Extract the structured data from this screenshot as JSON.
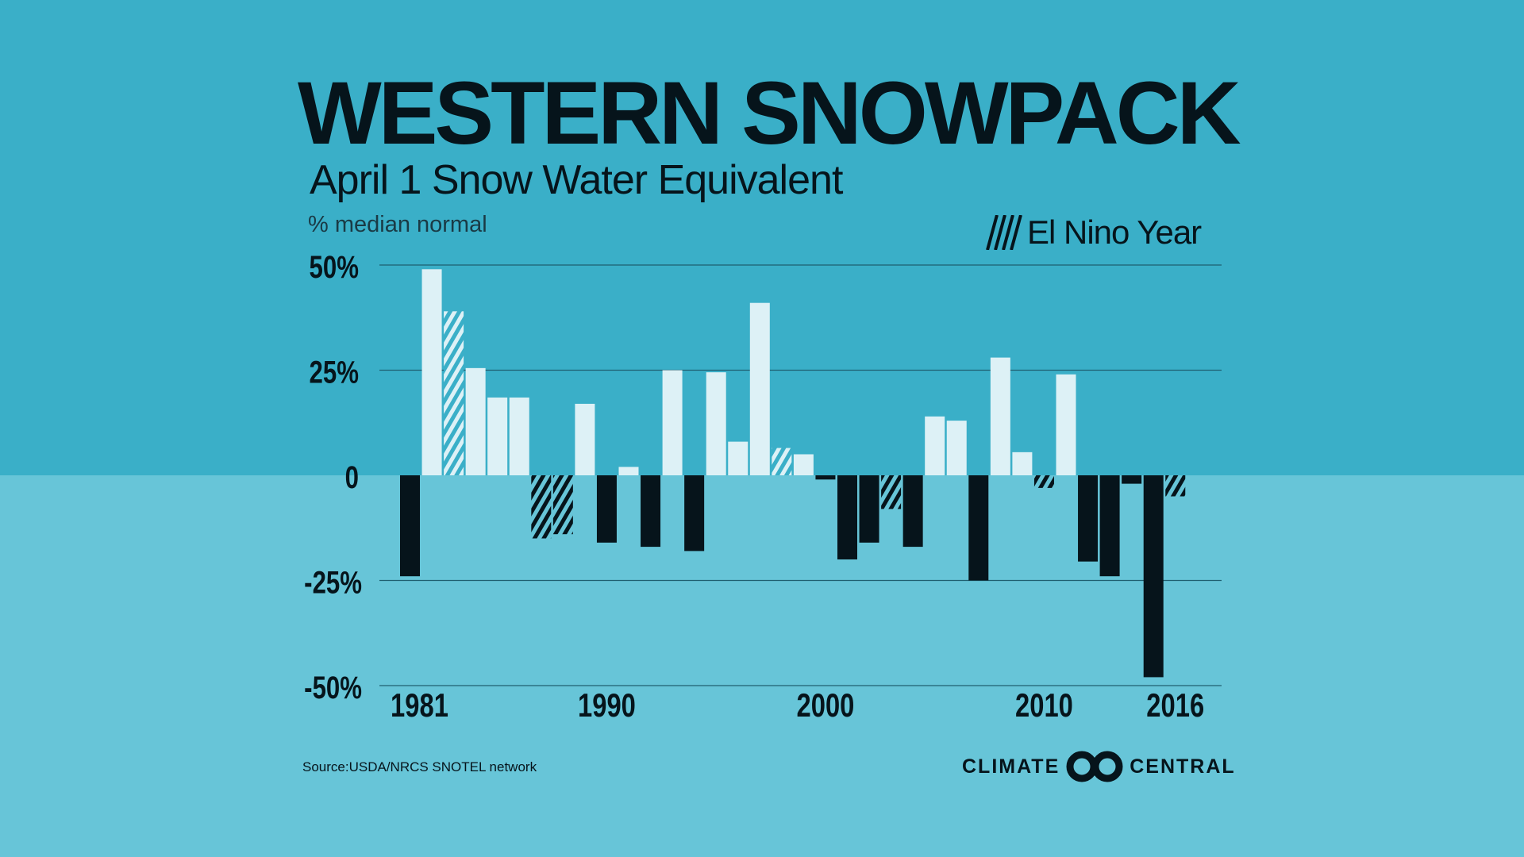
{
  "title": "WESTERN SNOWPACK",
  "subtitle": "April 1 Snow Water Equivalent",
  "unit_label": "% median normal",
  "legend_label": "El Nino Year",
  "source": "Source:USDA/NRCS SNOTEL network",
  "logo": {
    "left": "CLIMATE",
    "right": "CENTRAL"
  },
  "colors": {
    "bg_top": "#3aafc8",
    "bg_bottom": "#67c5d8",
    "positive": "#ddf1f6",
    "negative": "#06141b"
  },
  "chart_data": {
    "type": "bar",
    "title": "WESTERN SNOWPACK",
    "ylabel": "% median normal",
    "ylim": [
      -50,
      50
    ],
    "yticks": [
      50,
      25,
      0,
      -25,
      -50
    ],
    "ytick_labels": [
      "50%",
      "25%",
      "0",
      "-25%",
      "-50%"
    ],
    "xtick_labels": [
      "1981",
      "1990",
      "2000",
      "2010",
      "2016"
    ],
    "years": [
      1981,
      1982,
      1983,
      1984,
      1985,
      1986,
      1987,
      1988,
      1989,
      1990,
      1991,
      1992,
      1993,
      1994,
      1995,
      1996,
      1997,
      1998,
      1999,
      2000,
      2001,
      2002,
      2003,
      2004,
      2005,
      2006,
      2007,
      2008,
      2009,
      2010,
      2011,
      2012,
      2013,
      2014,
      2015,
      2016
    ],
    "values": [
      -24,
      49,
      39,
      25.5,
      18.5,
      18.5,
      -15,
      -14,
      17,
      -16,
      2,
      -17,
      25,
      -18,
      24.5,
      8,
      41,
      6.5,
      5,
      -1,
      -20,
      -16,
      -8,
      -17,
      14,
      13,
      -25,
      28,
      5.5,
      -3,
      24,
      -20.5,
      -24,
      -2,
      -48,
      -5
    ],
    "el_nino_years": [
      1983,
      1987,
      1988,
      1998,
      2003,
      2010,
      2016
    ],
    "legend": "El Nino Year",
    "grid": true
  }
}
